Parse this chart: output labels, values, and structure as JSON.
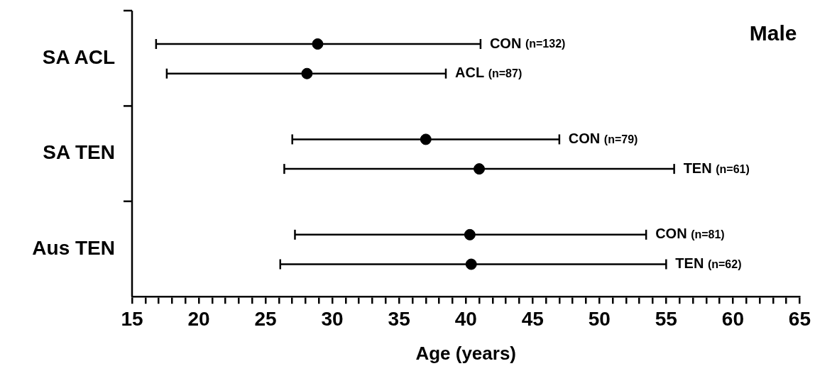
{
  "chart_data": {
    "type": "scatter",
    "orientation": "horizontal",
    "title": "Male",
    "xlabel": "Age (years)",
    "categories": [
      "SA ACL",
      "SA TEN",
      "Aus TEN"
    ],
    "series": [
      {
        "name": "CON (n=132)",
        "color": "#000000",
        "values": [
          28.9,
          null,
          null
        ],
        "errors": [
          [
            16.8,
            41.1
          ],
          null,
          null
        ]
      },
      {
        "name": "ACL (n=87)",
        "color": "#000000",
        "values": [
          28.1,
          null,
          null
        ],
        "errors": [
          [
            17.6,
            38.5
          ],
          null,
          null
        ]
      },
      {
        "name": "CON (n=79)",
        "color": "#000000",
        "values": [
          null,
          37.0,
          null
        ],
        "errors": [
          null,
          [
            27.0,
            47.0
          ],
          null
        ]
      },
      {
        "name": "TEN (n=61)",
        "color": "#000000",
        "values": [
          null,
          41.0,
          null
        ],
        "errors": [
          null,
          [
            26.4,
            55.6
          ],
          null
        ]
      },
      {
        "name": "CON (n=81)",
        "color": "#000000",
        "values": [
          null,
          null,
          40.3
        ],
        "errors": [
          null,
          null,
          [
            27.2,
            53.5
          ]
        ]
      },
      {
        "name": "TEN (n=62)",
        "color": "#000000",
        "values": [
          null,
          null,
          40.4
        ],
        "errors": [
          null,
          null,
          [
            26.1,
            55.0
          ]
        ]
      }
    ],
    "marker": "circle",
    "xlim": [
      15,
      65
    ],
    "xticks": [
      15,
      {
        "value": 16,
        "label": null
      },
      {
        "value": 17,
        "label": null
      },
      {
        "value": 18,
        "label": null
      },
      {
        "value": 19,
        "label": null
      },
      20,
      {
        "value": 21,
        "label": null
      },
      {
        "value": 22,
        "label": null
      },
      {
        "value": 23,
        "label": null
      },
      {
        "value": 24,
        "label": null
      },
      25,
      {
        "value": 26,
        "label": null
      },
      {
        "value": 27,
        "label": null
      },
      {
        "value": 28,
        "label": null
      },
      {
        "value": 29,
        "label": null
      },
      30,
      {
        "value": 31,
        "label": null
      },
      {
        "value": 32,
        "label": null
      },
      {
        "value": 33,
        "label": null
      },
      {
        "value": 34,
        "label": null
      },
      35,
      {
        "value": 36,
        "label": null
      },
      {
        "value": 37,
        "label": null
      },
      {
        "value": 38,
        "label": null
      },
      {
        "value": 39,
        "label": null
      },
      40,
      {
        "value": 41,
        "label": null
      },
      {
        "value": 42,
        "label": null
      },
      {
        "value": 43,
        "label": null
      },
      {
        "value": 44,
        "label": null
      },
      45,
      {
        "value": 46,
        "label": null
      },
      {
        "value": 47,
        "label": null
      },
      {
        "value": 48,
        "label": null
      },
      {
        "value": 49,
        "label": null
      },
      50,
      {
        "value": 51,
        "label": null
      },
      {
        "value": 52,
        "label": null
      },
      {
        "value": 53,
        "label": null
      },
      {
        "value": 54,
        "label": null
      },
      55,
      {
        "value": 56,
        "label": null
      },
      {
        "value": 57,
        "label": null
      },
      {
        "value": 58,
        "label": null
      },
      {
        "value": 59,
        "label": null
      },
      60,
      {
        "value": 61,
        "label": null
      },
      {
        "value": 62,
        "label": null
      },
      {
        "value": 63,
        "label": null
      },
      {
        "value": 64,
        "label": null
      },
      65
    ]
  }
}
